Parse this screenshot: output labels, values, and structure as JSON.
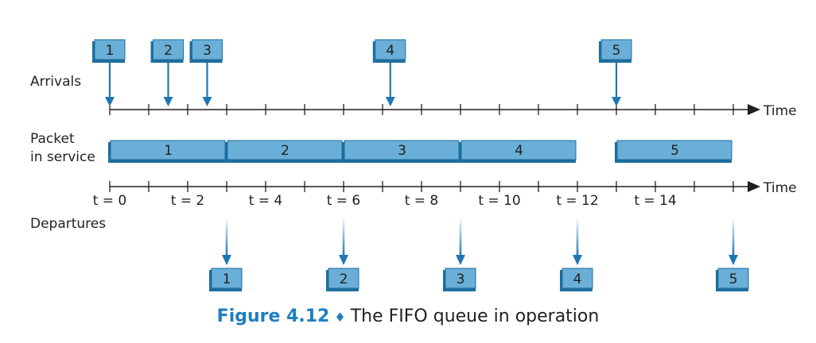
{
  "labels": {
    "arrivals": "Arrivals",
    "packet_line1": "Packet",
    "packet_line2": "in service",
    "departures": "Departures",
    "time_top": "Time",
    "time_bottom": "Time"
  },
  "time_ticks": [
    "t = 0",
    "t = 2",
    "t = 4",
    "t = 6",
    "t = 8",
    "t = 10",
    "t = 12",
    "t = 14"
  ],
  "arrivals": [
    {
      "label": "1",
      "t": 0
    },
    {
      "label": "2",
      "t": 1.5
    },
    {
      "label": "3",
      "t": 2.5
    },
    {
      "label": "4",
      "t": 7.2
    },
    {
      "label": "5",
      "t": 13
    }
  ],
  "service": [
    {
      "label": "1",
      "start": 0,
      "end": 3
    },
    {
      "label": "2",
      "start": 3,
      "end": 6
    },
    {
      "label": "3",
      "start": 6,
      "end": 9
    },
    {
      "label": "4",
      "start": 9,
      "end": 12
    },
    {
      "label": "5",
      "start": 13,
      "end": 16
    }
  ],
  "departures": [
    {
      "label": "1",
      "t": 3
    },
    {
      "label": "2",
      "t": 6
    },
    {
      "label": "3",
      "t": 9
    },
    {
      "label": "4",
      "t": 12
    },
    {
      "label": "5",
      "t": 16
    }
  ],
  "caption": {
    "figure": "Figure 4.12",
    "separator": "♦",
    "text": "The FIFO queue in operation"
  },
  "colors": {
    "box_fill": "#6aafd7",
    "box_edge": "#1d6e9e",
    "arrow": "#1f77b4",
    "axis": "#231f20",
    "caption_accent": "#1d7fbf"
  }
}
